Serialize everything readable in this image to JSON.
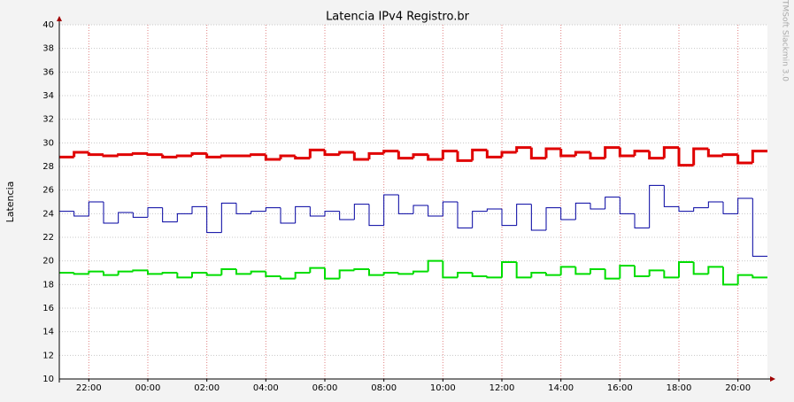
{
  "chart_data": {
    "type": "step-line",
    "title": "Latencia IPv4 Registro.br",
    "y_label": "Latencia",
    "watermark": "TMSoft Slackmin 3.0",
    "x": [
      21,
      21.5,
      22,
      22.5,
      23,
      23.5,
      24,
      24.5,
      25,
      25.5,
      26,
      26.5,
      27,
      27.5,
      28,
      28.5,
      29,
      29.5,
      30,
      30.5,
      31,
      31.5,
      32,
      32.5,
      33,
      33.5,
      34,
      34.5,
      35,
      35.5,
      36,
      36.5,
      37,
      37.5,
      38,
      38.5,
      39,
      39.5,
      40,
      40.5,
      41,
      41.5,
      42,
      42.5,
      43,
      43.5,
      44,
      44.5
    ],
    "xlim": [
      21,
      45
    ],
    "xticks": [
      {
        "value": 22,
        "label": "22:00"
      },
      {
        "value": 24,
        "label": "00:00"
      },
      {
        "value": 26,
        "label": "02:00"
      },
      {
        "value": 28,
        "label": "04:00"
      },
      {
        "value": 30,
        "label": "06:00"
      },
      {
        "value": 32,
        "label": "08:00"
      },
      {
        "value": 34,
        "label": "10:00"
      },
      {
        "value": 36,
        "label": "12:00"
      },
      {
        "value": 38,
        "label": "14:00"
      },
      {
        "value": 40,
        "label": "16:00"
      },
      {
        "value": 42,
        "label": "18:00"
      },
      {
        "value": 44,
        "label": "20:00"
      }
    ],
    "ylim": [
      10,
      40
    ],
    "yticks": [
      10,
      12,
      14,
      16,
      18,
      20,
      22,
      24,
      26,
      28,
      30,
      32,
      34,
      36,
      38,
      40
    ],
    "grid": true,
    "series": [
      {
        "color": "#e00000",
        "width": 3,
        "values": [
          28.8,
          29.2,
          29.0,
          28.9,
          29.0,
          29.1,
          29.0,
          28.8,
          28.9,
          29.1,
          28.8,
          28.9,
          28.9,
          29.0,
          28.6,
          28.9,
          28.7,
          29.4,
          29.0,
          29.2,
          28.6,
          29.1,
          29.3,
          28.7,
          29.0,
          28.6,
          29.3,
          28.5,
          29.4,
          28.8,
          29.2,
          29.6,
          28.7,
          29.5,
          28.9,
          29.2,
          28.7,
          29.6,
          28.9,
          29.3,
          28.7,
          29.6,
          28.1,
          29.5,
          28.9,
          29.0,
          28.3,
          29.3
        ]
      },
      {
        "color": "#0000a0",
        "width": 1,
        "values": [
          24.2,
          23.8,
          25.0,
          23.2,
          24.1,
          23.7,
          24.5,
          23.3,
          24.0,
          24.6,
          22.4,
          24.9,
          24.0,
          24.2,
          24.5,
          23.2,
          24.6,
          23.8,
          24.2,
          23.5,
          24.8,
          23.0,
          25.6,
          24.0,
          24.7,
          23.8,
          25.0,
          22.8,
          24.2,
          24.4,
          23.0,
          24.8,
          22.6,
          24.5,
          23.5,
          24.9,
          24.4,
          25.4,
          24.0,
          22.8,
          26.4,
          24.6,
          24.2,
          24.5,
          25.0,
          24.0,
          25.3,
          20.4
        ]
      },
      {
        "color": "#00dd00",
        "width": 2,
        "values": [
          19.0,
          18.9,
          19.1,
          18.8,
          19.1,
          19.2,
          18.9,
          19.0,
          18.6,
          19.0,
          18.8,
          19.3,
          18.9,
          19.1,
          18.7,
          18.5,
          19.0,
          19.4,
          18.5,
          19.2,
          19.3,
          18.8,
          19.0,
          18.9,
          19.1,
          20.0,
          18.6,
          19.0,
          18.7,
          18.6,
          19.9,
          18.6,
          19.0,
          18.8,
          19.5,
          18.9,
          19.3,
          18.5,
          19.6,
          18.7,
          19.2,
          18.6,
          19.9,
          18.9,
          19.5,
          18.0,
          18.8,
          18.6
        ]
      }
    ]
  }
}
